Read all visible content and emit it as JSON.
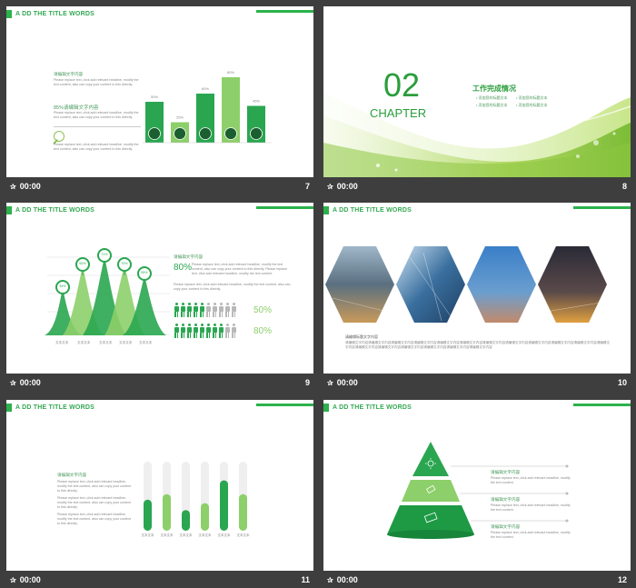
{
  "header_title": "A DD THE TITLE WORDS",
  "footer_time": "00:00",
  "colors": {
    "accent": "#2bb24c",
    "light_green": "#9ed56a",
    "dark_bg": "#3e3e3e",
    "gray_icon": "#b8b8b8"
  },
  "slide7": {
    "number": "7",
    "heading1": "请编辑文字内容",
    "body1": "Please replace text, click add relevant headline, modify the text content, also can copy your content to this directly.",
    "heading2": "85%请编辑文字内容",
    "body2": "Please replace text, click add relevant headline, modify the text content, also can copy your content to this directly.",
    "body3": "Please replace text, click add relevant headline, modify the text content, also can copy your content to this directly.",
    "chart_data": {
      "type": "bar",
      "values_label": [
        "50%",
        "25%",
        "60%",
        "80%",
        "45%"
      ],
      "values": [
        50,
        25,
        60,
        80,
        45
      ],
      "icons": [
        "monitor-icon",
        "pen-icon",
        "camera-icon",
        "document-icon",
        "chat-icon"
      ]
    }
  },
  "slide8": {
    "number": "8",
    "big_number": "02",
    "chapter": "CHAPTER",
    "title": "工作完成情况",
    "items": [
      "添加您的标题文本",
      "添加您的标题文本",
      "添加您的标题文本",
      "添加您的标题文本"
    ]
  },
  "slide9": {
    "number": "9",
    "peaks": [
      "45%",
      "60%",
      "71%",
      "70%",
      "55%"
    ],
    "peak_labels": [
      "文本文本",
      "文本文本",
      "文本文本",
      "文本文本",
      "文本文本"
    ],
    "heading": "请编辑文字内容",
    "big_percent": "80%",
    "body1": "Please replace text, click add relevant headline, modify the text content, also can copy your content to this directly. Please replace text, click add relevant headline, modify the text content.",
    "body2": "Please replace text, click add relevant headline, modify the text content, also can copy your content to this directly.",
    "row1_percent": "50%",
    "row2_percent": "80%"
  },
  "slide10": {
    "number": "10",
    "caption_head": "请编辑标题文字内容",
    "caption": "请编辑文字内容请编辑文字内容请编辑文字内容请编辑文字内容请编辑文字内容请编辑文字内容请编辑文字内容请编辑文字内容请编辑文字内容请编辑文字内容请编辑文字内容请编辑文字内容请编辑文字内容请编辑文字内容请编辑文字内容请编辑文字内容请编辑文字内容请编辑文字内容"
  },
  "slide11": {
    "number": "11",
    "heading": "请编辑文字内容",
    "body1": "Please replace text, click add relevant headline, modify the text content, also can copy your content to this directly.",
    "body2": "Please replace text, click add relevant headline, modify the text content, also can copy your content to this directly.",
    "body3": "Please replace text, click add relevant headline, modify the text content, also can copy your content to this directly.",
    "chart_data": {
      "type": "bar",
      "values": [
        45,
        53,
        30,
        40,
        73,
        53
      ],
      "labels": [
        "文本文本",
        "文本文本",
        "文本文本",
        "文本文本",
        "文本文本",
        "文本文本"
      ]
    }
  },
  "slide12": {
    "number": "12",
    "items": [
      {
        "heading": "请编辑文字内容",
        "body": "Please replace text, click add relevant headline, modify the text content."
      },
      {
        "heading": "请编辑文字内容",
        "body": "Please replace text, click add relevant headline, modify the text content."
      },
      {
        "heading": "请编辑文字内容",
        "body": "Please replace text, click add relevant headline, modify the text content."
      }
    ]
  }
}
